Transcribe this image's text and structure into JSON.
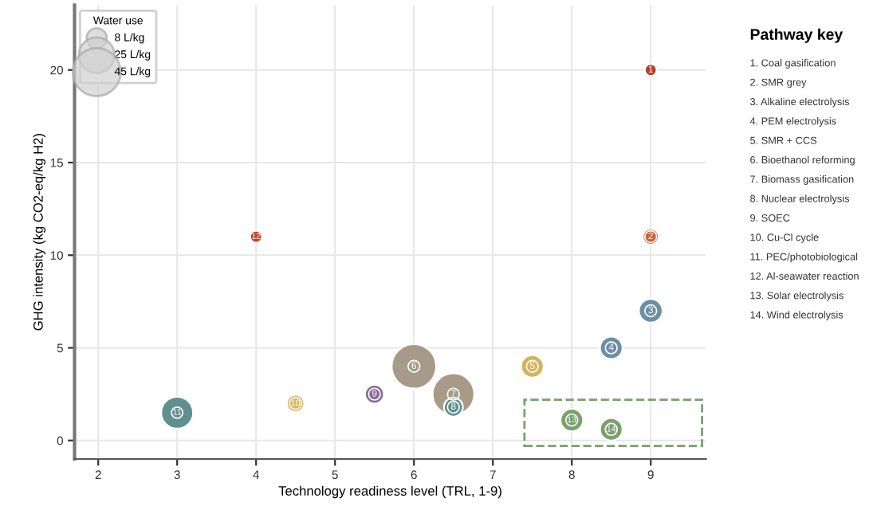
{
  "chart_data": {
    "type": "bubble",
    "xlabel": "Technology readiness level (TRL, 1-9)",
    "ylabel": "GHG intensity (kg CO2-eq/kg H2)",
    "legend_title": "Water use",
    "grid": true,
    "xlim": [
      1.7,
      9.7
    ],
    "xticks": [
      2,
      3,
      4,
      5,
      6,
      7,
      8,
      9
    ],
    "ylim": [
      -1,
      23.5
    ],
    "yticks": [
      0,
      5,
      10,
      15,
      20
    ],
    "size_legend": [
      {
        "value": 8,
        "label": "8 L/kg"
      },
      {
        "value": 25,
        "label": "25 L/kg"
      },
      {
        "value": 45,
        "label": "45 L/kg"
      }
    ],
    "series": [
      {
        "x": [
          9,
          9,
          9,
          8.5,
          7.5,
          6,
          6.5,
          6.5,
          5.5,
          4.5,
          3,
          4,
          8,
          8.5
        ],
        "values": [
          20,
          11,
          7,
          5,
          4,
          4,
          2.5,
          1.8,
          2.5,
          2,
          1.5,
          11,
          1.1,
          0.6
        ],
        "sizes": [
          3,
          5,
          11,
          10,
          10,
          39,
          34,
          7,
          7,
          6,
          20,
          3,
          10,
          10
        ],
        "colors": [
          "#b5412c",
          "#d2603a",
          "#6d8fa5",
          "#6d8fa5",
          "#d8b25a",
          "#a89a88",
          "#a89a88",
          "#5f8f8f",
          "#8b6a9a",
          "#d8b860",
          "#5f8f8f",
          "#c9452b",
          "#7aa06e",
          "#7aa06e"
        ]
      }
    ],
    "annotations": [
      {
        "text": "1",
        "x": 9,
        "y": 20
      },
      {
        "text": "2",
        "x": 9,
        "y": 11
      },
      {
        "text": "3",
        "x": 9,
        "y": 7
      },
      {
        "text": "4",
        "x": 8.5,
        "y": 5
      },
      {
        "text": "5",
        "x": 7.5,
        "y": 4
      },
      {
        "text": "6",
        "x": 6,
        "y": 4
      },
      {
        "text": "7",
        "x": 6.5,
        "y": 2.5
      },
      {
        "text": "8",
        "x": 6.5,
        "y": 1.8
      },
      {
        "text": "9",
        "x": 5.5,
        "y": 2.5
      },
      {
        "text": "10",
        "x": 4.5,
        "y": 2
      },
      {
        "text": "11",
        "x": 3,
        "y": 1.5
      },
      {
        "text": "12",
        "x": 4,
        "y": 11
      },
      {
        "text": "13",
        "x": 8,
        "y": 1.1
      },
      {
        "text": "14",
        "x": 8.5,
        "y": 0.6
      },
      "Pathway key",
      "1. Coal gasification",
      "2. SMR grey",
      "3. Alkaline electrolysis",
      "4. PEM electrolysis",
      "5. SMR + CCS",
      "6. Bioethanol reforming",
      "7. Biomass gasification",
      "8. Nuclear electrolysis",
      "9. SOEC",
      "10. Cu-Cl cycle",
      "11. PEC/photobiological",
      "12. Al-seawater reaction",
      "13. Solar electrolysis",
      "14. Wind electrolysis"
    ]
  }
}
